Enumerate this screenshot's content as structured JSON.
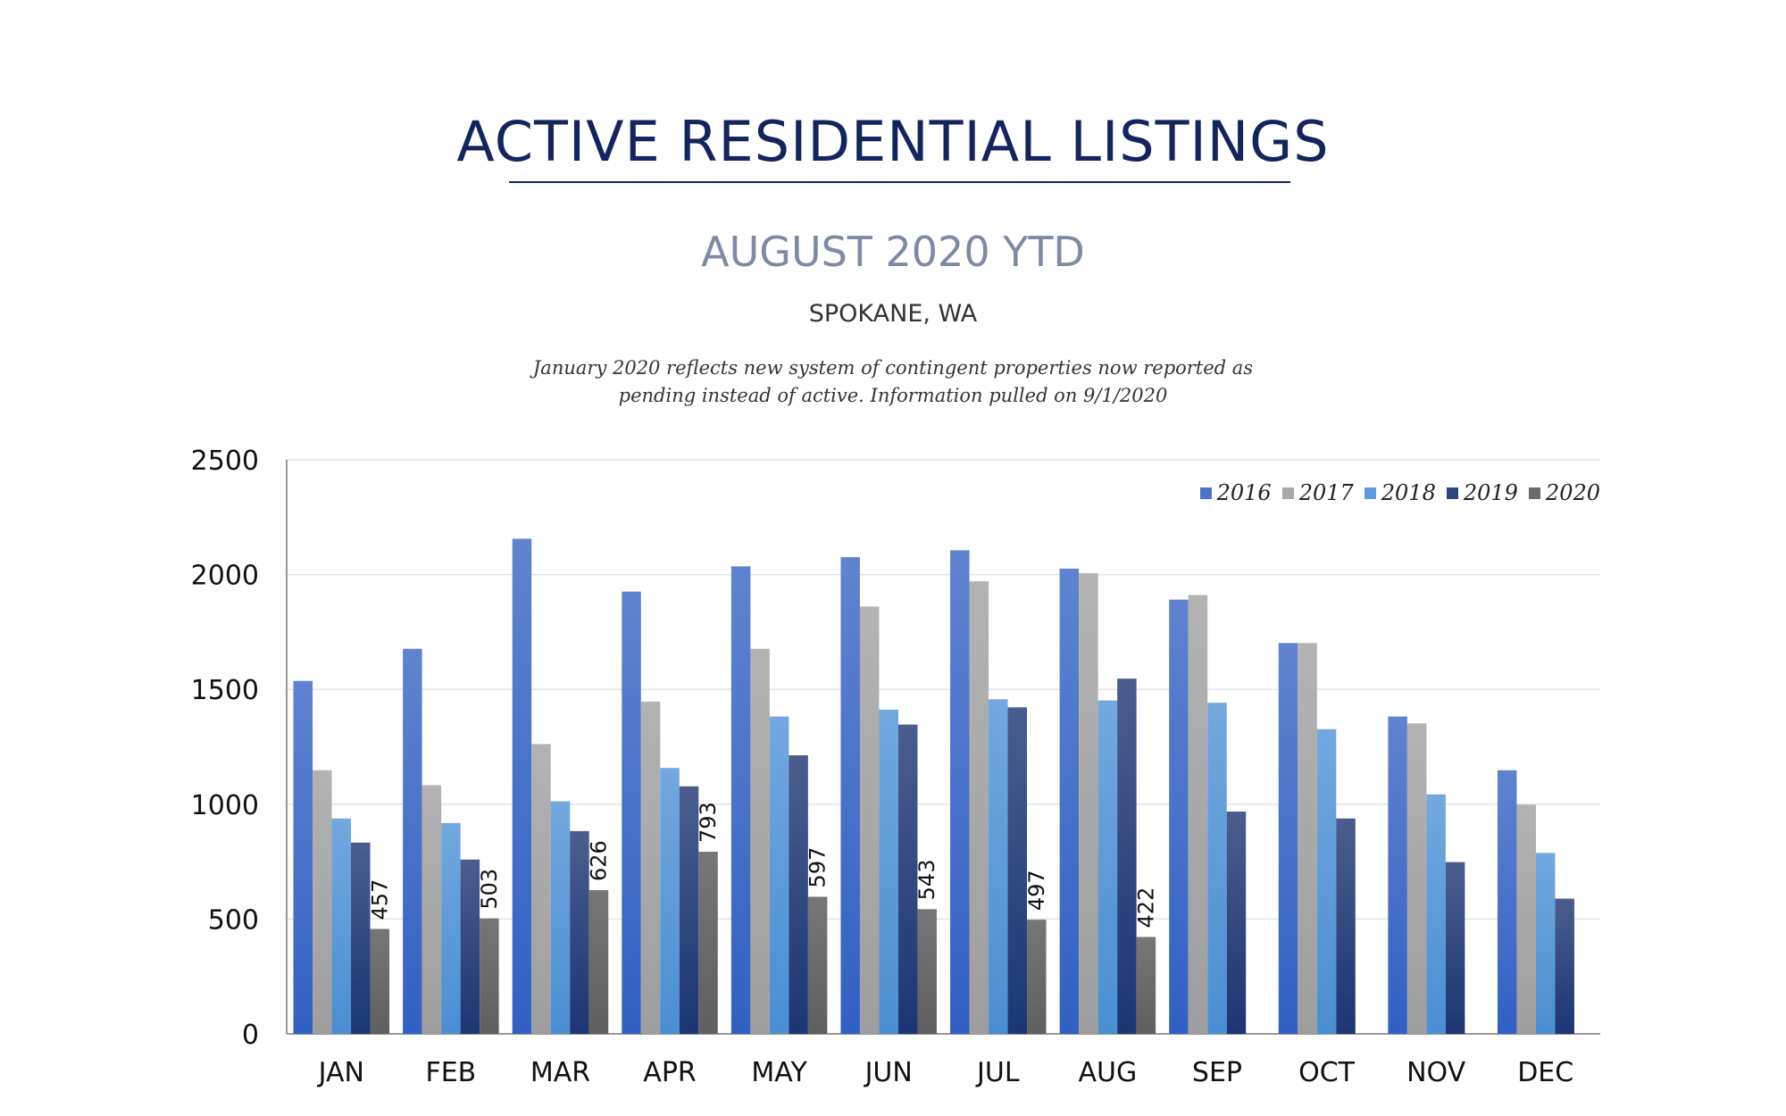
{
  "header": {
    "title": "ACTIVE RESIDENTIAL LISTINGS",
    "subtitle": "AUGUST 2020 YTD",
    "location": "SPOKANE, WA",
    "note_line1": "January 2020 reflects new system of contingent properties now reported as",
    "note_line2": "pending instead of active.  Information pulled on 9/1/2020"
  },
  "chart_data": {
    "type": "bar",
    "title": "ACTIVE RESIDENTIAL LISTINGS",
    "subtitle": "AUGUST 2020 YTD",
    "categories": [
      "JAN",
      "FEB",
      "MAR",
      "APR",
      "MAY",
      "JUN",
      "JUL",
      "AUG",
      "SEP",
      "OCT",
      "NOV",
      "DEC"
    ],
    "ylim": [
      0,
      2500
    ],
    "yticks": [
      0,
      500,
      1000,
      1500,
      2000,
      2500
    ],
    "grid": true,
    "legend_position": "top-right",
    "series": [
      {
        "name": "2016",
        "color": "#4a74cc",
        "values": [
          1537,
          1677,
          2156,
          1926,
          2036,
          2076,
          2106,
          2026,
          1891,
          1702,
          1382,
          1148
        ]
      },
      {
        "name": "2017",
        "color": "#a9a9a9",
        "values": [
          1148,
          1083,
          1262,
          1447,
          1677,
          1861,
          1971,
          2006,
          1911,
          1702,
          1352,
          998
        ]
      },
      {
        "name": "2018",
        "color": "#5d9bdb",
        "values": [
          938,
          918,
          1013,
          1158,
          1382,
          1412,
          1457,
          1452,
          1442,
          1327,
          1043,
          788
        ]
      },
      {
        "name": "2019",
        "color": "#2b4580",
        "values": [
          833,
          759,
          883,
          1078,
          1213,
          1347,
          1422,
          1547,
          968,
          938,
          748,
          589
        ]
      },
      {
        "name": "2020",
        "color": "#6b6b6b",
        "values": [
          457,
          503,
          626,
          793,
          597,
          543,
          497,
          422,
          null,
          null,
          null,
          null
        ],
        "data_labels": true
      }
    ]
  }
}
